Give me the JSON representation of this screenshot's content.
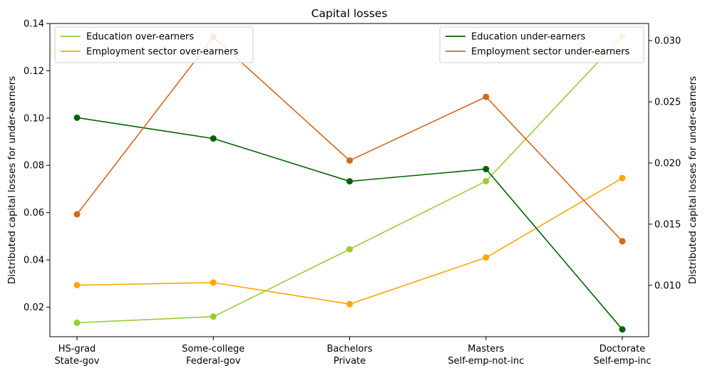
{
  "chart_data": {
    "type": "line",
    "title": "Capital losses",
    "categories": [
      [
        "HS-grad",
        "State-gov"
      ],
      [
        "Some-college",
        "Federal-gov"
      ],
      [
        "Bachelors",
        "Private"
      ],
      [
        "Masters",
        "Self-emp-not-inc"
      ],
      [
        "Doctorate",
        "Self-emp-inc"
      ]
    ],
    "y_left": {
      "label": "Distributed capital losses for under-earners",
      "ylim": [
        0.0075,
        0.14
      ],
      "ticks": [
        0.02,
        0.04,
        0.06,
        0.08,
        0.1,
        0.12,
        0.14
      ],
      "tick_labels": [
        "0.02",
        "0.04",
        "0.06",
        "0.08",
        "0.10",
        "0.12",
        "0.14"
      ]
    },
    "y_right": {
      "label": "Distributed capital losses for under-earners",
      "ylim": [
        0.0058,
        0.0314
      ],
      "ticks": [
        0.01,
        0.015,
        0.02,
        0.025,
        0.03
      ],
      "tick_labels": [
        "0.010",
        "0.015",
        "0.020",
        "0.025",
        "0.030"
      ]
    },
    "series": [
      {
        "name": "Education over-earners",
        "axis": "left",
        "color": "#9acd32",
        "values": [
          0.0134,
          0.016,
          0.0445,
          0.0733,
          0.1346
        ]
      },
      {
        "name": "Employment sector over-earners",
        "axis": "left",
        "color": "#ffa500",
        "values": [
          0.0293,
          0.0304,
          0.0213,
          0.041,
          0.0746
        ]
      },
      {
        "name": "Education under-earners",
        "axis": "right",
        "color": "#006400",
        "values": [
          0.0237,
          0.022,
          0.0185,
          0.0195,
          0.0064
        ]
      },
      {
        "name": "Employment sector under-earners",
        "axis": "right",
        "color": "#d2691e",
        "values": [
          0.0158,
          0.0303,
          0.0202,
          0.0254,
          0.0136
        ]
      }
    ],
    "legends": [
      {
        "position": "upper-left",
        "series": [
          0,
          1
        ]
      },
      {
        "position": "upper-right",
        "series": [
          2,
          3
        ]
      }
    ],
    "grid": false
  }
}
